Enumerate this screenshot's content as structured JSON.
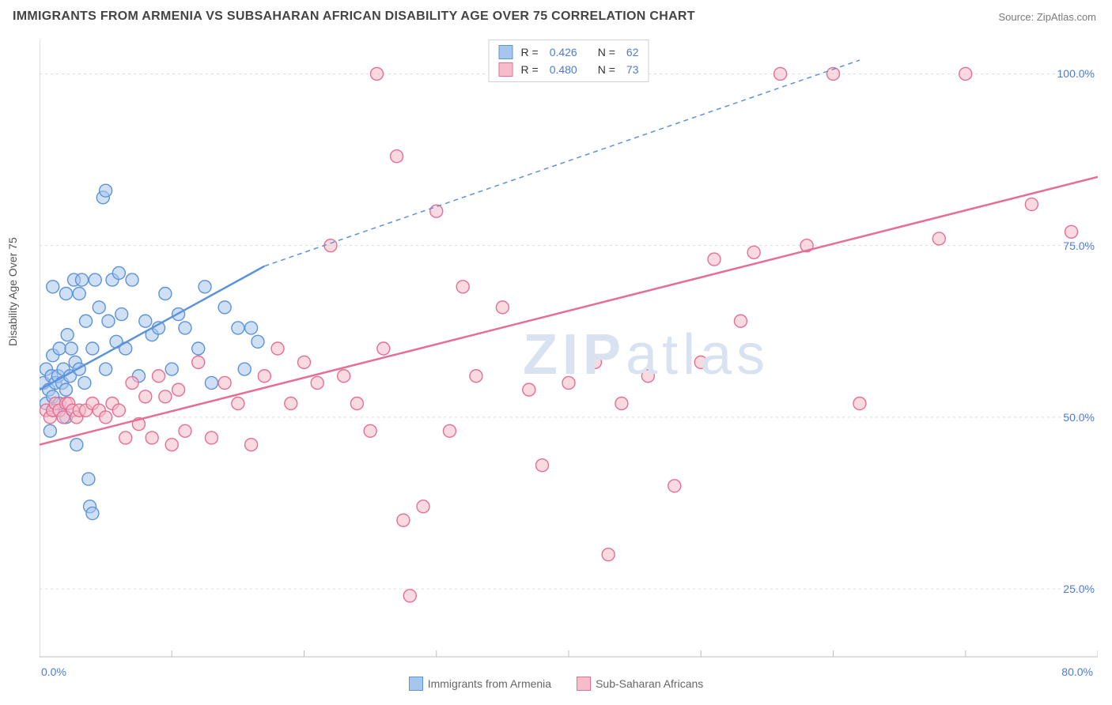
{
  "title": "IMMIGRANTS FROM ARMENIA VS SUBSAHARAN AFRICAN DISABILITY AGE OVER 75 CORRELATION CHART",
  "source": "Source: ZipAtlas.com",
  "ylabel": "Disability Age Over 75",
  "watermark_bold": "ZIP",
  "watermark_light": "atlas",
  "chart": {
    "type": "scatter",
    "background_color": "#ffffff",
    "grid_color": "#dcdcdc",
    "axis_color": "#bcbcbc",
    "x_min": 0.0,
    "x_max": 80.0,
    "x_ticks": [
      0,
      10,
      20,
      30,
      40,
      50,
      60,
      70,
      80
    ],
    "x_label_0": "0.0%",
    "x_label_max": "80.0%",
    "y_min": 15.0,
    "y_max": 105.0,
    "y_gridlines": [
      25.0,
      50.0,
      75.0,
      100.0
    ],
    "y_labels": {
      "25": "25.0%",
      "50": "50.0%",
      "75": "75.0%",
      "100": "100.0%"
    },
    "marker_radius": 8,
    "marker_stroke_width": 1.4,
    "trend_line_width": 2.5,
    "series": [
      {
        "name": "Immigrants from Armenia",
        "fill": "#a7c6ed",
        "fill_opacity": 0.55,
        "stroke": "#5c93da",
        "R": "0.426",
        "N": "62",
        "trend_solid": {
          "x1": 0,
          "y1": 54,
          "x2": 17,
          "y2": 72
        },
        "trend_dashed": {
          "x1": 17,
          "y1": 72,
          "x2": 62,
          "y2": 102
        },
        "points": [
          [
            0.3,
            55
          ],
          [
            0.5,
            52
          ],
          [
            0.5,
            57
          ],
          [
            0.7,
            54
          ],
          [
            0.9,
            56
          ],
          [
            1.0,
            53
          ],
          [
            1.0,
            59
          ],
          [
            1.2,
            55
          ],
          [
            1.2,
            51
          ],
          [
            1.4,
            56
          ],
          [
            1.5,
            52
          ],
          [
            1.5,
            60
          ],
          [
            1.7,
            55
          ],
          [
            1.8,
            57
          ],
          [
            2.0,
            54
          ],
          [
            2.0,
            50
          ],
          [
            2.1,
            62
          ],
          [
            2.3,
            56
          ],
          [
            2.4,
            60
          ],
          [
            2.6,
            70
          ],
          [
            2.7,
            58
          ],
          [
            2.8,
            46
          ],
          [
            3.0,
            68
          ],
          [
            3.0,
            57
          ],
          [
            3.2,
            70
          ],
          [
            3.4,
            55
          ],
          [
            3.5,
            64
          ],
          [
            3.7,
            41
          ],
          [
            3.8,
            37
          ],
          [
            4.0,
            36
          ],
          [
            4.0,
            60
          ],
          [
            4.2,
            70
          ],
          [
            4.5,
            66
          ],
          [
            4.8,
            82
          ],
          [
            5.0,
            57
          ],
          [
            5.2,
            64
          ],
          [
            5.5,
            70
          ],
          [
            5.8,
            61
          ],
          [
            6.0,
            71
          ],
          [
            6.2,
            65
          ],
          [
            6.5,
            60
          ],
          [
            7.0,
            70
          ],
          [
            7.5,
            56
          ],
          [
            8.0,
            64
          ],
          [
            8.5,
            62
          ],
          [
            9.0,
            63
          ],
          [
            9.5,
            68
          ],
          [
            10.0,
            57
          ],
          [
            10.5,
            65
          ],
          [
            11.0,
            63
          ],
          [
            12.0,
            60
          ],
          [
            12.5,
            69
          ],
          [
            13.0,
            55
          ],
          [
            14.0,
            66
          ],
          [
            15.0,
            63
          ],
          [
            15.5,
            57
          ],
          [
            16.0,
            63
          ],
          [
            16.5,
            61
          ],
          [
            5.0,
            83
          ],
          [
            1.0,
            69
          ],
          [
            2.0,
            68
          ],
          [
            0.8,
            48
          ]
        ]
      },
      {
        "name": "Sub-Saharan Africans",
        "fill": "#f6bcc9",
        "fill_opacity": 0.55,
        "stroke": "#e56f94",
        "R": "0.480",
        "N": "73",
        "trend_solid": {
          "x1": 0,
          "y1": 46,
          "x2": 80,
          "y2": 85
        },
        "trend_dashed": null,
        "points": [
          [
            0.5,
            51
          ],
          [
            0.8,
            50
          ],
          [
            1.0,
            51
          ],
          [
            1.2,
            52
          ],
          [
            1.5,
            51
          ],
          [
            1.8,
            50
          ],
          [
            2.0,
            52
          ],
          [
            2.2,
            52
          ],
          [
            2.5,
            51
          ],
          [
            2.8,
            50
          ],
          [
            3.0,
            51
          ],
          [
            3.5,
            51
          ],
          [
            4.0,
            52
          ],
          [
            4.5,
            51
          ],
          [
            5.0,
            50
          ],
          [
            5.5,
            52
          ],
          [
            6.0,
            51
          ],
          [
            6.5,
            47
          ],
          [
            7.0,
            55
          ],
          [
            7.5,
            49
          ],
          [
            8.0,
            53
          ],
          [
            8.5,
            47
          ],
          [
            9.0,
            56
          ],
          [
            9.5,
            53
          ],
          [
            10.0,
            46
          ],
          [
            10.5,
            54
          ],
          [
            11.0,
            48
          ],
          [
            12.0,
            58
          ],
          [
            13.0,
            47
          ],
          [
            14.0,
            55
          ],
          [
            15.0,
            52
          ],
          [
            16.0,
            46
          ],
          [
            17.0,
            56
          ],
          [
            18.0,
            60
          ],
          [
            19.0,
            52
          ],
          [
            20.0,
            58
          ],
          [
            21.0,
            55
          ],
          [
            22.0,
            75
          ],
          [
            23.0,
            56
          ],
          [
            24.0,
            52
          ],
          [
            25.0,
            48
          ],
          [
            25.5,
            100
          ],
          [
            26.0,
            60
          ],
          [
            27.0,
            88
          ],
          [
            27.5,
            35
          ],
          [
            28.0,
            24
          ],
          [
            29.0,
            37
          ],
          [
            30.0,
            80
          ],
          [
            31.0,
            48
          ],
          [
            32.0,
            69
          ],
          [
            33.0,
            56
          ],
          [
            35.0,
            66
          ],
          [
            37.0,
            54
          ],
          [
            38.0,
            43
          ],
          [
            40.0,
            55
          ],
          [
            41.5,
            100
          ],
          [
            43.0,
            30
          ],
          [
            44.0,
            52
          ],
          [
            46.0,
            56
          ],
          [
            48.0,
            40
          ],
          [
            50.0,
            58
          ],
          [
            51.0,
            73
          ],
          [
            53.0,
            64
          ],
          [
            54.0,
            74
          ],
          [
            58.0,
            75
          ],
          [
            62.0,
            52
          ],
          [
            56.0,
            100
          ],
          [
            60.0,
            100
          ],
          [
            70.0,
            100
          ],
          [
            68.0,
            76
          ],
          [
            75.0,
            81
          ],
          [
            78.0,
            77
          ],
          [
            42.0,
            58
          ]
        ]
      }
    ]
  },
  "bottom_legend": [
    {
      "label": "Immigrants from Armenia",
      "fill": "#a7c6ed",
      "stroke": "#5c93da"
    },
    {
      "label": "Sub-Saharan Africans",
      "fill": "#f6bcc9",
      "stroke": "#e56f94"
    }
  ],
  "corr_label_R": "R =",
  "corr_label_N": "N ="
}
